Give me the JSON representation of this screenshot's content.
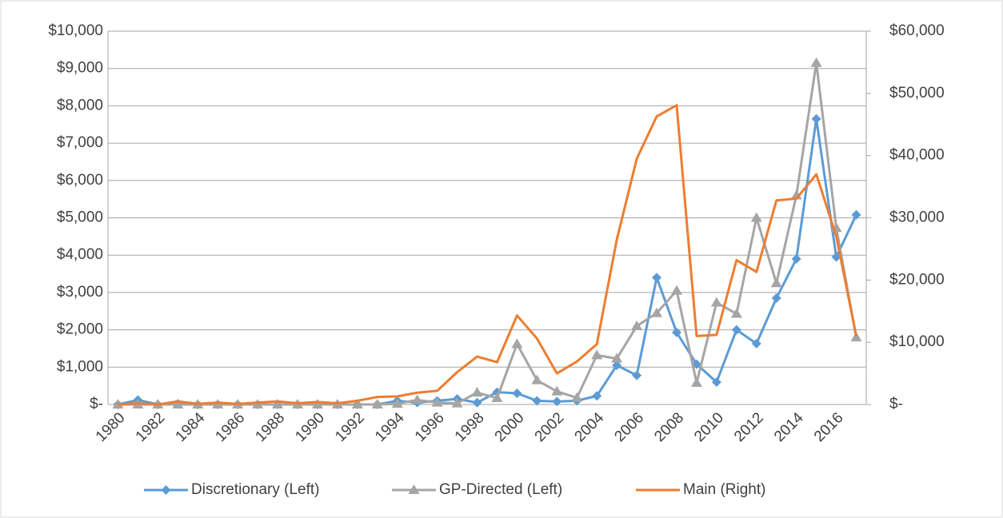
{
  "chart_data": {
    "type": "line",
    "categories": [
      "1980",
      null,
      "1982",
      null,
      "1984",
      null,
      "1986",
      null,
      "1988",
      null,
      "1990",
      null,
      "1992",
      null,
      "1994",
      null,
      "1996",
      null,
      "1998",
      null,
      "2000",
      null,
      "2002",
      null,
      "2004",
      null,
      "2006",
      null,
      "2008",
      null,
      "2010",
      null,
      "2012",
      null,
      "2014",
      null,
      "2016",
      null
    ],
    "series": [
      {
        "name": "Discretionary (Left)",
        "color": "#5b9bd5",
        "marker": "diamond",
        "values": [
          0,
          120,
          0,
          20,
          0,
          0,
          0,
          0,
          0,
          0,
          0,
          0,
          0,
          0,
          100,
          50,
          100,
          150,
          50,
          330,
          300,
          100,
          80,
          100,
          230,
          1050,
          780,
          3400,
          1930,
          1080,
          600,
          2000,
          1630,
          2850,
          3900,
          7650,
          3950,
          5080
        ]
      },
      {
        "name": "GP-Directed (Left)",
        "color": "#a5a5a5",
        "marker": "triangle",
        "values": [
          0,
          0,
          0,
          0,
          0,
          0,
          0,
          0,
          0,
          0,
          0,
          0,
          0,
          0,
          20,
          120,
          50,
          30,
          320,
          170,
          1620,
          650,
          350,
          180,
          1320,
          1230,
          2100,
          2450,
          3050,
          580,
          2730,
          2430,
          5000,
          3250,
          5600,
          9150,
          4730,
          1800
        ]
      },
      {
        "name": "Main (Right)",
        "color": "#ed7d31",
        "axis": "y2",
        "values": [
          0,
          200,
          0,
          500,
          100,
          300,
          100,
          300,
          500,
          200,
          400,
          200,
          600,
          1200,
          1300,
          1900,
          2200,
          5200,
          7700,
          6800,
          14300,
          10600,
          5000,
          6900,
          9700,
          26500,
          39500,
          46300,
          48100,
          11000,
          11200,
          23200,
          21300,
          32800,
          33100,
          37000,
          27000,
          11000
        ]
      }
    ],
    "ylim": [
      0,
      10000
    ],
    "yticks": [
      {
        "value": 0,
        "label": "$-"
      },
      {
        "value": 1000,
        "label": "$1,000"
      },
      {
        "value": 2000,
        "label": "$2,000"
      },
      {
        "value": 3000,
        "label": "$3,000"
      },
      {
        "value": 4000,
        "label": "$4,000"
      },
      {
        "value": 5000,
        "label": "$5,000"
      },
      {
        "value": 6000,
        "label": "$6,000"
      },
      {
        "value": 7000,
        "label": "$7,000"
      },
      {
        "value": 8000,
        "label": "$8,000"
      },
      {
        "value": 9000,
        "label": "$9,000"
      },
      {
        "value": 10000,
        "label": "$10,000"
      }
    ],
    "y2lim": [
      0,
      60000
    ],
    "y2ticks": [
      {
        "value": 0,
        "label": "$-"
      },
      {
        "value": 10000,
        "label": "$10,000"
      },
      {
        "value": 20000,
        "label": "$20,000"
      },
      {
        "value": 30000,
        "label": "$30,000"
      },
      {
        "value": 40000,
        "label": "$40,000"
      },
      {
        "value": 50000,
        "label": "$50,000"
      },
      {
        "value": 60000,
        "label": "$60,000"
      }
    ],
    "grid": true,
    "legend": "bottom"
  }
}
